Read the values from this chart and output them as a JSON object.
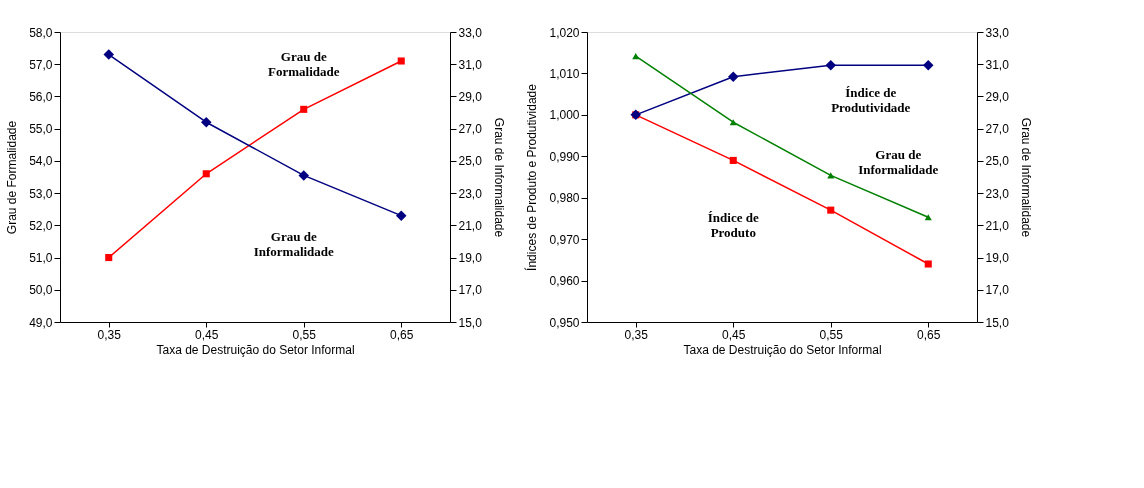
{
  "chart_data": [
    {
      "type": "line",
      "categories": [
        "0,35",
        "0,45",
        "0,55",
        "0,65"
      ],
      "xlabel": "Taxa de Destruição do Setor Informal",
      "ylabel": "Grau de Formalidade",
      "y2label": "Grau de Informalidade",
      "ylim": [
        49,
        58
      ],
      "yticks": [
        {
          "value": 49,
          "label": "49,0"
        },
        {
          "value": 50,
          "label": "50,0"
        },
        {
          "value": 51,
          "label": "51,0"
        },
        {
          "value": 52,
          "label": "52,0"
        },
        {
          "value": 53,
          "label": "53,0"
        },
        {
          "value": 54,
          "label": "54,0"
        },
        {
          "value": 55,
          "label": "55,0"
        },
        {
          "value": 56,
          "label": "56,0"
        },
        {
          "value": 57,
          "label": "57,0"
        },
        {
          "value": 58,
          "label": "58,0"
        }
      ],
      "y2lim": [
        15,
        33
      ],
      "y2ticks": [
        {
          "value": 15,
          "label": "15,0"
        },
        {
          "value": 17,
          "label": "17,0"
        },
        {
          "value": 19,
          "label": "19,0"
        },
        {
          "value": 21,
          "label": "21,0"
        },
        {
          "value": 23,
          "label": "23,0"
        },
        {
          "value": 25,
          "label": "25,0"
        },
        {
          "value": 27,
          "label": "27,0"
        },
        {
          "value": 29,
          "label": "29,0"
        },
        {
          "value": 31,
          "label": "31,0"
        },
        {
          "value": 33,
          "label": "33,0"
        }
      ],
      "grid": false,
      "series": [
        {
          "name": "Grau de Formalidade",
          "color": "#ff0000",
          "marker": "square",
          "values": [
            51.0,
            53.6,
            55.6,
            57.1
          ]
        },
        {
          "name": "Grau de Informalidade",
          "color": "#000080",
          "marker": "diamond",
          "axis": "y2",
          "values": [
            31.6,
            27.4,
            24.1,
            21.6
          ]
        }
      ]
    },
    {
      "type": "line",
      "categories": [
        "0,35",
        "0,45",
        "0,55",
        "0,65"
      ],
      "xlabel": "Taxa de Destruição do Setor Informal",
      "ylabel": "Índices de Produto e Produtividade",
      "y2label": "Grau de Informalidade",
      "ylim": [
        0.95,
        1.02
      ],
      "yticks": [
        {
          "value": 0.95,
          "label": "0,950"
        },
        {
          "value": 0.96,
          "label": "0,960"
        },
        {
          "value": 0.97,
          "label": "0,970"
        },
        {
          "value": 0.98,
          "label": "0,980"
        },
        {
          "value": 0.99,
          "label": "0,990"
        },
        {
          "value": 1.0,
          "label": "1,000"
        },
        {
          "value": 1.01,
          "label": "1,010"
        },
        {
          "value": 1.02,
          "label": "1,020"
        }
      ],
      "y2lim": [
        15,
        33
      ],
      "y2ticks": [
        {
          "value": 15,
          "label": "15,0"
        },
        {
          "value": 17,
          "label": "17,0"
        },
        {
          "value": 19,
          "label": "19,0"
        },
        {
          "value": 21,
          "label": "21,0"
        },
        {
          "value": 23,
          "label": "23,0"
        },
        {
          "value": 25,
          "label": "25,0"
        },
        {
          "value": 27,
          "label": "27,0"
        },
        {
          "value": 29,
          "label": "29,0"
        },
        {
          "value": 31,
          "label": "31,0"
        },
        {
          "value": 33,
          "label": "33,0"
        }
      ],
      "grid": false,
      "series": [
        {
          "name": "Índice de Produtividade",
          "color": "#000080",
          "marker": "diamond",
          "values": [
            1.0,
            1.0092,
            1.012,
            1.012
          ]
        },
        {
          "name": "Índice de Produto",
          "color": "#ff0000",
          "marker": "square",
          "values": [
            1.0,
            0.989,
            0.977,
            0.964
          ]
        },
        {
          "name": "Grau de Informalidade",
          "color": "#008000",
          "marker": "triangle",
          "axis": "y2",
          "values": [
            31.5,
            27.4,
            24.1,
            21.5
          ]
        }
      ]
    }
  ]
}
